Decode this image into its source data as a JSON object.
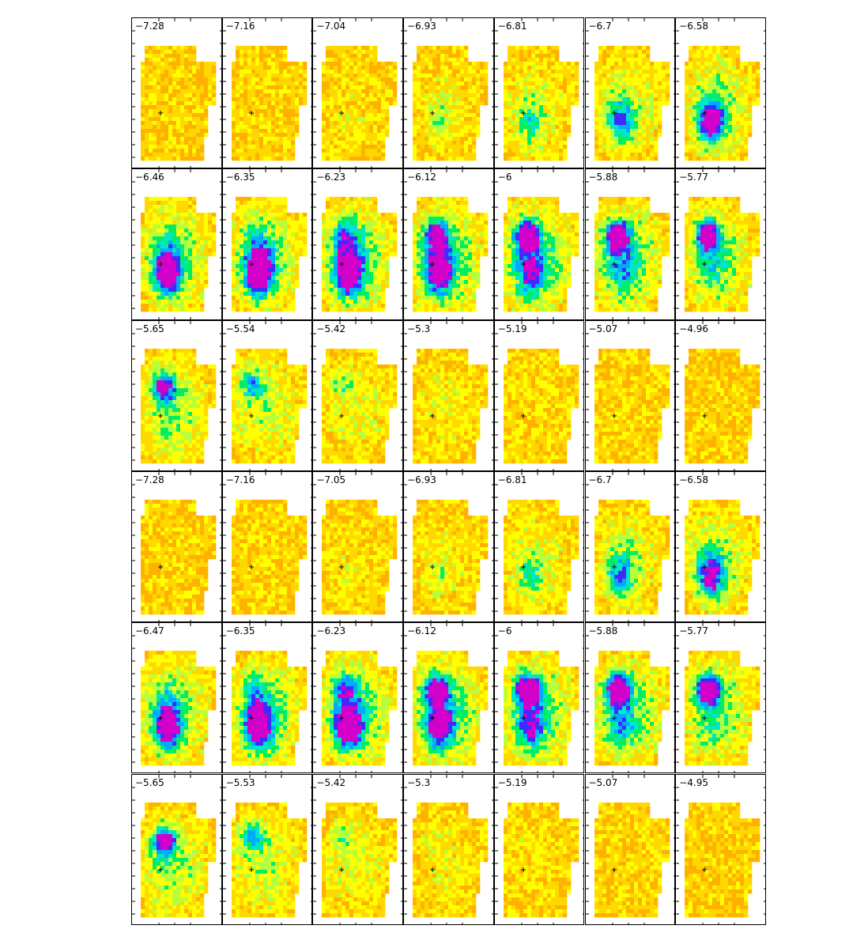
{
  "figure": {
    "panel_labels": [
      "−7.28",
      "−7.16",
      "−7.04",
      "−6.93",
      "−6.81",
      "−6.7",
      "−6.58",
      "−6.46",
      "−6.35",
      "−6.23",
      "−6.12",
      "−6",
      "−5.88",
      "−5.77",
      "−5.65",
      "−5.54",
      "−5.42",
      "−5.3",
      "−5.19",
      "−5.07",
      "−4.96",
      "−7.28",
      "−7.16",
      "−7.05",
      "−6.93",
      "−6.81",
      "−6.7",
      "−6.58",
      "−6.47",
      "−6.35",
      "−6.23",
      "−6.12",
      "−6",
      "−5.88",
      "−5.77",
      "−5.65",
      "−5.53",
      "−5.42",
      "−5.3",
      "−5.19",
      "−5.07",
      "−4.95"
    ],
    "colormap": [
      "#ff5a00",
      "#ff8800",
      "#ffb100",
      "#ffd800",
      "#ffff00",
      "#b5ff3d",
      "#00ee66",
      "#00e6c8",
      "#00aaff",
      "#3f2bff",
      "#d200c8"
    ],
    "background_color": "#ffffff",
    "border_color": "#000000"
  }
}
